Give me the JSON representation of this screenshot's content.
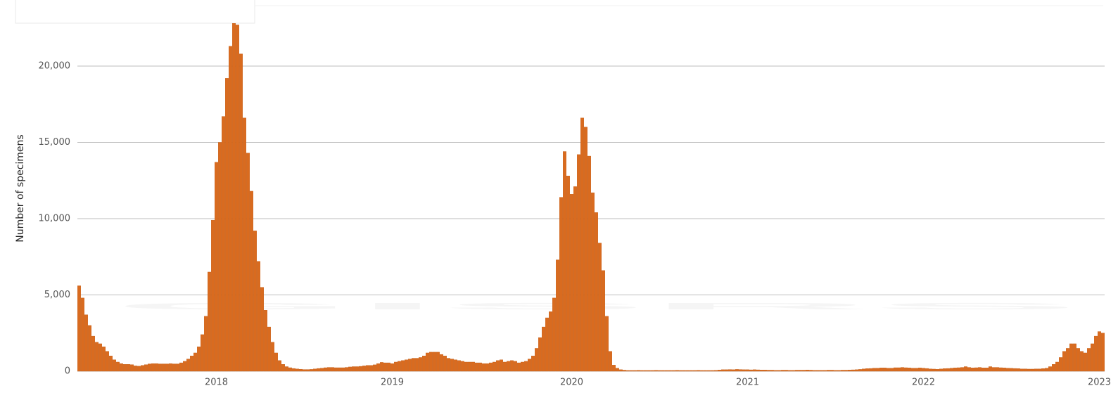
{
  "chart_data": {
    "type": "bar",
    "watermark": "GISRS",
    "y_label": "Number of specimens",
    "color": "#d96b1f",
    "grid": true,
    "ylim": [
      0,
      24000
    ],
    "yticks": [
      0,
      {
        "value": 5000,
        "label": "5,000"
      },
      {
        "value": 10000,
        "label": "10,000"
      },
      {
        "value": 15000,
        "label": "15,000"
      },
      {
        "value": 20000,
        "label": "20,000"
      }
    ],
    "categories": [
      null,
      null,
      null,
      null,
      null,
      null,
      null,
      null,
      null,
      null,
      null,
      null,
      null,
      null,
      null,
      null,
      null,
      null,
      null,
      null,
      null,
      null,
      null,
      null,
      null,
      null,
      null,
      null,
      null,
      null,
      null,
      null,
      null,
      null,
      null,
      null,
      null,
      null,
      null,
      "2018",
      null,
      null,
      null,
      null,
      null,
      null,
      null,
      null,
      null,
      null,
      null,
      null,
      null,
      null,
      null,
      null,
      null,
      null,
      null,
      null,
      null,
      null,
      null,
      null,
      null,
      null,
      null,
      null,
      null,
      null,
      null,
      null,
      null,
      null,
      null,
      null,
      null,
      null,
      null,
      null,
      null,
      null,
      null,
      null,
      null,
      null,
      null,
      null,
      null,
      "2019",
      null,
      null,
      null,
      null,
      null,
      null,
      null,
      null,
      null,
      null,
      null,
      null,
      null,
      null,
      null,
      null,
      null,
      null,
      null,
      null,
      null,
      null,
      null,
      null,
      null,
      null,
      null,
      null,
      null,
      null,
      null,
      null,
      null,
      null,
      null,
      null,
      null,
      null,
      null,
      null,
      null,
      null,
      null,
      null,
      null,
      null,
      null,
      null,
      null,
      null,
      "2020",
      null,
      null,
      null,
      null,
      null,
      null,
      null,
      null,
      null,
      null,
      null,
      null,
      null,
      null,
      null,
      null,
      null,
      null,
      null,
      null,
      null,
      null,
      null,
      null,
      null,
      null,
      null,
      null,
      null,
      null,
      null,
      null,
      null,
      null,
      null,
      null,
      null,
      null,
      null,
      null,
      null,
      null,
      null,
      null,
      null,
      null,
      null,
      null,
      null,
      "2021",
      null,
      null,
      null,
      null,
      null,
      null,
      null,
      null,
      null,
      null,
      null,
      null,
      null,
      null,
      null,
      null,
      null,
      null,
      null,
      null,
      null,
      null,
      null,
      null,
      null,
      null,
      null,
      null,
      null,
      null,
      null,
      null,
      null,
      null,
      null,
      null,
      null,
      null,
      null,
      null,
      null,
      null,
      null,
      null,
      null,
      null,
      null,
      null,
      null,
      "2022",
      null,
      null,
      null,
      null,
      null,
      null,
      null,
      null,
      null,
      null,
      null,
      null,
      null,
      null,
      null,
      null,
      null,
      null,
      null,
      null,
      null,
      null,
      null,
      null,
      null,
      null,
      null,
      null,
      null,
      null,
      null,
      null,
      null,
      null,
      null,
      null,
      null,
      null,
      null,
      null,
      null,
      null,
      null,
      null,
      null,
      null,
      null,
      null,
      null,
      "2023",
      null
    ],
    "values": [
      5600,
      4800,
      3700,
      3000,
      2300,
      1900,
      1800,
      1600,
      1300,
      1000,
      750,
      600,
      500,
      450,
      450,
      430,
      350,
      330,
      380,
      430,
      480,
      500,
      500,
      480,
      480,
      480,
      500,
      480,
      480,
      550,
      650,
      800,
      1000,
      1200,
      1600,
      2400,
      3600,
      6500,
      9900,
      13700,
      15000,
      16700,
      19200,
      21300,
      22800,
      22700,
      20800,
      16600,
      14300,
      11800,
      9200,
      7200,
      5500,
      4000,
      2900,
      1900,
      1200,
      700,
      450,
      300,
      230,
      180,
      150,
      130,
      110,
      110,
      120,
      150,
      180,
      200,
      230,
      250,
      250,
      230,
      230,
      230,
      250,
      280,
      300,
      300,
      320,
      350,
      380,
      380,
      420,
      500,
      580,
      550,
      550,
      500,
      600,
      650,
      700,
      750,
      800,
      850,
      850,
      900,
      1000,
      1200,
      1250,
      1250,
      1250,
      1100,
      1000,
      850,
      800,
      750,
      700,
      650,
      600,
      600,
      600,
      550,
      550,
      500,
      500,
      550,
      600,
      700,
      750,
      600,
      650,
      700,
      650,
      550,
      600,
      650,
      800,
      1000,
      1500,
      2200,
      2900,
      3500,
      3900,
      4800,
      7300,
      11400,
      14400,
      12800,
      11600,
      12100,
      14200,
      16600,
      16000,
      14100,
      11700,
      10400,
      8400,
      6600,
      3600,
      1300,
      400,
      200,
      100,
      70,
      50,
      50,
      50,
      60,
      50,
      50,
      50,
      50,
      60,
      50,
      50,
      50,
      50,
      50,
      60,
      50,
      50,
      50,
      50,
      50,
      60,
      50,
      50,
      50,
      50,
      60,
      80,
      100,
      100,
      110,
      100,
      120,
      110,
      100,
      100,
      90,
      100,
      90,
      80,
      80,
      70,
      70,
      60,
      60,
      70,
      70,
      60,
      60,
      70,
      70,
      70,
      80,
      70,
      60,
      60,
      60,
      60,
      70,
      70,
      60,
      60,
      70,
      70,
      80,
      90,
      100,
      120,
      150,
      170,
      180,
      200,
      200,
      220,
      220,
      200,
      200,
      230,
      230,
      250,
      230,
      220,
      200,
      200,
      220,
      200,
      180,
      150,
      140,
      130,
      150,
      170,
      180,
      200,
      220,
      230,
      250,
      300,
      250,
      220,
      230,
      250,
      220,
      220,
      300,
      250,
      250,
      230,
      220,
      200,
      190,
      180,
      170,
      150,
      150,
      140,
      140,
      150,
      150,
      170,
      200,
      300,
      450,
      600,
      900,
      1300,
      1500,
      1800,
      1800,
      1500,
      1300,
      1200,
      1500,
      1800,
      2300,
      2600,
      2500
    ]
  }
}
